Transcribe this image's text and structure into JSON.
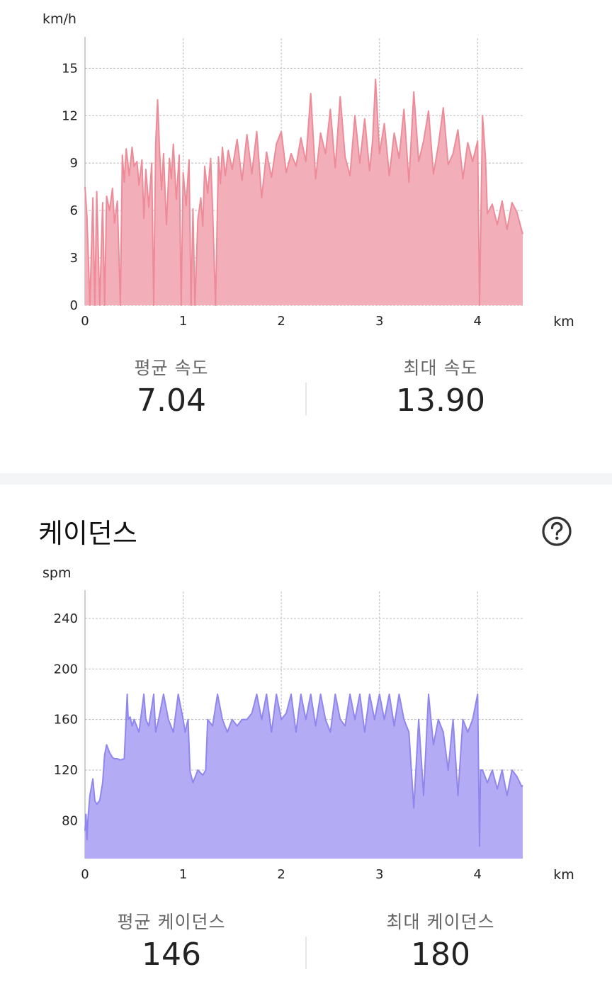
{
  "speed": {
    "unit": "km/h",
    "avg_label": "평균 속도",
    "avg_value": "7.04",
    "max_label": "최대 속도",
    "max_value": "13.90"
  },
  "cadence": {
    "title": "케이던스",
    "unit": "spm",
    "avg_label": "평균 케이던스",
    "avg_value": "146",
    "max_label": "최대 케이던스",
    "max_value": "180"
  },
  "icons": {
    "help": "question-circle-icon"
  },
  "chart_data": [
    {
      "type": "area",
      "xlabel": "km",
      "ylabel": "km/h",
      "xlim": [
        0,
        4.46
      ],
      "ylim": [
        0,
        16
      ],
      "x_ticks": [
        "0",
        "1",
        "2",
        "3",
        "4"
      ],
      "y_ticks": [
        "0",
        "3",
        "6",
        "9",
        "12",
        "15"
      ],
      "grid": true,
      "color": "#ee8b98",
      "fill": "#f2afba",
      "series": [
        {
          "x": [
            0,
            0.02,
            0.05,
            0.08,
            0.1,
            0.12,
            0.15,
            0.18,
            0.2,
            0.22,
            0.25,
            0.28,
            0.3,
            0.33,
            0.36,
            0.38,
            0.4,
            0.42,
            0.45,
            0.48,
            0.5,
            0.53,
            0.55,
            0.58,
            0.6,
            0.62,
            0.65,
            0.68,
            0.7,
            0.72,
            0.74,
            0.76,
            0.78,
            0.8,
            0.83,
            0.86,
            0.88,
            0.9,
            0.93,
            0.96,
            0.98,
            1.0,
            1.03,
            1.06,
            1.08,
            1.1,
            1.12,
            1.15,
            1.18,
            1.2,
            1.22,
            1.25,
            1.28,
            1.3,
            1.33,
            1.36,
            1.38,
            1.4,
            1.43,
            1.46,
            1.5,
            1.55,
            1.6,
            1.65,
            1.7,
            1.75,
            1.8,
            1.85,
            1.9,
            1.95,
            2.0,
            2.05,
            2.1,
            2.15,
            2.2,
            2.25,
            2.3,
            2.35,
            2.4,
            2.45,
            2.5,
            2.55,
            2.6,
            2.65,
            2.7,
            2.75,
            2.8,
            2.85,
            2.9,
            2.93,
            2.96,
            3.0,
            3.05,
            3.1,
            3.15,
            3.2,
            3.25,
            3.3,
            3.35,
            3.4,
            3.45,
            3.5,
            3.55,
            3.6,
            3.65,
            3.7,
            3.75,
            3.8,
            3.85,
            3.9,
            3.95,
            4.0,
            4.02,
            4.05,
            4.08,
            4.1,
            4.15,
            4.2,
            4.25,
            4.3,
            4.35,
            4.4,
            4.46
          ],
          "y": [
            7.5,
            5.6,
            0,
            6.8,
            0,
            7.2,
            0,
            6.5,
            0,
            6.9,
            6.0,
            7.4,
            5.2,
            6.6,
            0,
            9.5,
            7.8,
            9.9,
            8.2,
            10.0,
            8.8,
            9.1,
            7.6,
            9.2,
            5.5,
            8.6,
            6.2,
            9.0,
            0,
            10.2,
            13.0,
            9.8,
            7.3,
            9.6,
            5.1,
            9.3,
            8.0,
            10.2,
            6.7,
            9.5,
            0,
            8.4,
            6.3,
            9.2,
            0,
            6.1,
            0,
            5.4,
            6.8,
            5.0,
            8.8,
            7.1,
            9.3,
            6.2,
            0,
            9.4,
            7.7,
            10.0,
            8.2,
            9.8,
            8.6,
            10.5,
            7.9,
            10.8,
            8.3,
            11.0,
            6.8,
            9.7,
            8.1,
            10.2,
            11.0,
            8.4,
            9.6,
            8.8,
            10.6,
            9.1,
            13.4,
            8.0,
            10.9,
            9.6,
            12.4,
            8.7,
            13.2,
            9.4,
            8.2,
            12.0,
            9.0,
            11.8,
            8.5,
            10.4,
            14.3,
            9.6,
            11.5,
            8.2,
            10.9,
            9.3,
            12.4,
            7.8,
            13.5,
            9.1,
            10.4,
            12.3,
            8.3,
            10.1,
            12.5,
            8.9,
            9.6,
            11.1,
            8.0,
            10.3,
            9.1,
            10.4,
            0,
            12.0,
            9.4,
            5.8,
            6.4,
            5.1,
            6.6,
            4.8,
            6.5,
            5.9,
            4.5
          ]
        }
      ]
    },
    {
      "type": "area",
      "xlabel": "km",
      "ylabel": "spm",
      "xlim": [
        0,
        4.46
      ],
      "ylim": [
        50,
        250
      ],
      "x_ticks": [
        "0",
        "1",
        "2",
        "3",
        "4"
      ],
      "y_ticks": [
        "80",
        "120",
        "160",
        "200",
        "240"
      ],
      "grid": true,
      "color": "#8f86ee",
      "fill": "#b3acf4",
      "series": [
        {
          "x": [
            0,
            0.01,
            0.02,
            0.03,
            0.05,
            0.08,
            0.1,
            0.12,
            0.15,
            0.18,
            0.2,
            0.22,
            0.25,
            0.28,
            0.3,
            0.33,
            0.36,
            0.4,
            0.43,
            0.44,
            0.46,
            0.48,
            0.5,
            0.55,
            0.6,
            0.62,
            0.65,
            0.7,
            0.72,
            0.75,
            0.8,
            0.85,
            0.9,
            0.95,
            1.0,
            1.02,
            1.05,
            1.07,
            1.1,
            1.15,
            1.2,
            1.23,
            1.25,
            1.3,
            1.35,
            1.4,
            1.45,
            1.5,
            1.55,
            1.6,
            1.65,
            1.7,
            1.75,
            1.8,
            1.85,
            1.9,
            1.95,
            2.0,
            2.05,
            2.1,
            2.15,
            2.2,
            2.25,
            2.3,
            2.35,
            2.4,
            2.45,
            2.5,
            2.55,
            2.6,
            2.65,
            2.7,
            2.75,
            2.8,
            2.85,
            2.9,
            2.95,
            3.0,
            3.05,
            3.1,
            3.15,
            3.2,
            3.25,
            3.3,
            3.35,
            3.4,
            3.45,
            3.5,
            3.55,
            3.6,
            3.65,
            3.7,
            3.75,
            3.8,
            3.85,
            3.9,
            3.95,
            4.0,
            4.02,
            4.03,
            4.05,
            4.1,
            4.15,
            4.2,
            4.25,
            4.3,
            4.35,
            4.4,
            4.45,
            4.46
          ],
          "y": [
            72,
            85,
            65,
            82,
            100,
            113,
            96,
            93,
            96,
            110,
            132,
            140,
            134,
            130,
            129,
            129,
            128,
            129,
            180,
            160,
            162,
            155,
            160,
            150,
            180,
            160,
            155,
            180,
            150,
            160,
            180,
            160,
            150,
            180,
            160,
            150,
            160,
            119,
            110,
            120,
            116,
            120,
            160,
            155,
            180,
            160,
            150,
            160,
            155,
            160,
            160,
            165,
            180,
            160,
            180,
            150,
            180,
            160,
            165,
            180,
            150,
            180,
            160,
            180,
            155,
            180,
            160,
            150,
            180,
            160,
            155,
            180,
            160,
            180,
            150,
            180,
            160,
            180,
            160,
            180,
            155,
            180,
            160,
            150,
            90,
            160,
            100,
            180,
            140,
            160,
            150,
            120,
            160,
            100,
            160,
            150,
            160,
            180,
            60,
            120,
            120,
            110,
            120,
            105,
            120,
            100,
            120,
            115,
            107,
            108
          ]
        }
      ]
    }
  ]
}
